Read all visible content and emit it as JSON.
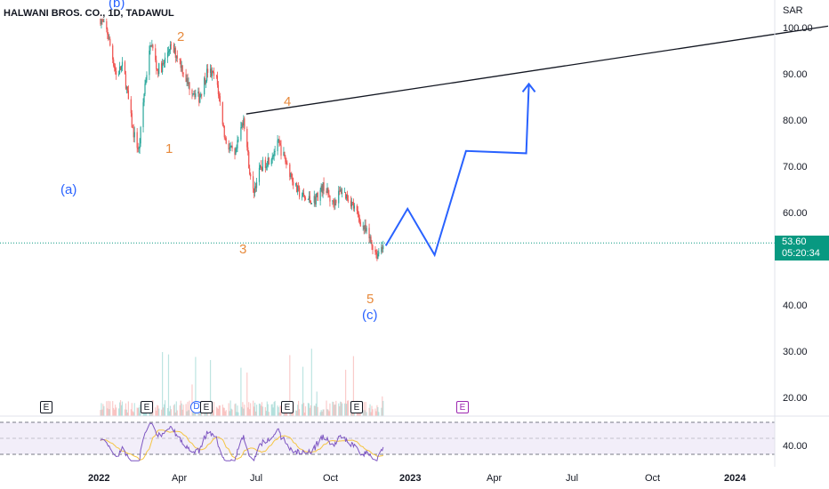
{
  "header": {
    "symbol_line": "HALWANI BROS. CO., 1D, TADAWUL",
    "currency": "SAR"
  },
  "price_axis": {
    "labels": [
      "100.00",
      "90.00",
      "80.00",
      "70.00",
      "60.00",
      "40.00",
      "30.00",
      "20.00"
    ]
  },
  "rsi_axis": {
    "label": "40.00"
  },
  "time_axis": {
    "labels": [
      "2022",
      "Apr",
      "Jul",
      "Oct",
      "2023",
      "Apr",
      "Jul",
      "Oct",
      "2024"
    ]
  },
  "last_price": {
    "value": "53.60",
    "countdown": "05:20:34",
    "color": "#089981"
  },
  "waves": {
    "corrective": {
      "a": "(a)",
      "b": "(b)",
      "c": "(c)"
    },
    "impulse": {
      "w1": "1",
      "w2": "2",
      "w3": "3",
      "w4": "4",
      "w5": "5"
    }
  },
  "badges": {
    "earnings": "E",
    "dividend": "D"
  },
  "colors": {
    "up": "#26a69a",
    "down": "#ef5350",
    "rsi": "#7e57c2",
    "rsi_ma": "#f5c542",
    "projection": "#2962ff",
    "trendline": "#131722",
    "wave_orange": "#e78a3c"
  },
  "chart_data": {
    "type": "candlestick",
    "price_range": [
      15,
      105
    ],
    "price_path": [
      [
        "2022-01-01",
        102.5
      ],
      [
        "2022-01-10",
        99
      ],
      [
        "2022-01-20",
        90
      ],
      [
        "2022-01-28",
        92
      ],
      [
        "2022-02-08",
        78
      ],
      [
        "2022-02-15",
        73.5
      ],
      [
        "2022-02-22",
        88
      ],
      [
        "2022-03-01",
        97
      ],
      [
        "2022-03-08",
        91
      ],
      [
        "2022-03-15",
        92
      ],
      [
        "2022-03-22",
        96
      ],
      [
        "2022-04-01",
        94
      ],
      [
        "2022-04-12",
        88
      ],
      [
        "2022-04-25",
        85
      ],
      [
        "2022-05-05",
        91
      ],
      [
        "2022-05-15",
        89
      ],
      [
        "2022-05-25",
        76
      ],
      [
        "2022-06-05",
        72
      ],
      [
        "2022-06-15",
        81
      ],
      [
        "2022-06-25",
        64
      ],
      [
        "2022-07-05",
        70
      ],
      [
        "2022-07-15",
        72
      ],
      [
        "2022-07-25",
        75
      ],
      [
        "2022-08-05",
        70
      ],
      [
        "2022-08-15",
        65
      ],
      [
        "2022-08-25",
        63
      ],
      [
        "2022-09-05",
        63
      ],
      [
        "2022-09-15",
        66
      ],
      [
        "2022-09-25",
        62
      ],
      [
        "2022-10-05",
        65
      ],
      [
        "2022-10-15",
        63
      ],
      [
        "2022-10-25",
        59
      ],
      [
        "2022-11-05",
        55
      ],
      [
        "2022-11-15",
        51
      ],
      [
        "2022-11-22",
        53.6
      ]
    ],
    "projection": [
      [
        "2022-11-25",
        53
      ],
      [
        "2022-12-20",
        61
      ],
      [
        "2023-01-20",
        51
      ],
      [
        "2023-02-25",
        73.5
      ],
      [
        "2023-05-05",
        73
      ],
      [
        "2023-05-08",
        88
      ]
    ],
    "trendline": [
      [
        "2022-06-18",
        81.5
      ],
      [
        "2024-04-15",
        100.5
      ]
    ],
    "rsi_range": [
      25,
      75
    ],
    "rsi_bands": [
      30,
      70
    ]
  }
}
